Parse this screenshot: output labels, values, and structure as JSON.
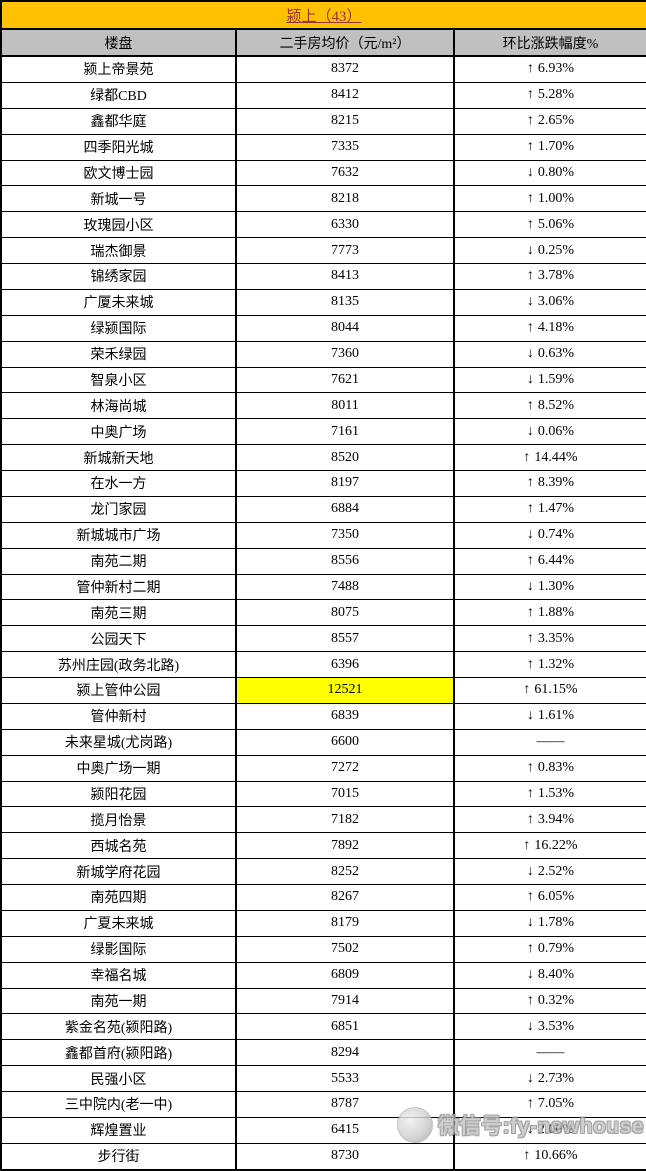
{
  "table": {
    "title": "颍上（43）",
    "columns": [
      "楼盘",
      "二手房均价（元/m²）",
      "环比涨跌幅度%"
    ],
    "rows": [
      {
        "name": "颍上帝景苑",
        "price": "8372",
        "direction": "up",
        "change": "6.93%"
      },
      {
        "name": "绿都CBD",
        "price": "8412",
        "direction": "up",
        "change": "5.28%"
      },
      {
        "name": "鑫都华庭",
        "price": "8215",
        "direction": "up",
        "change": "2.65%"
      },
      {
        "name": "四季阳光城",
        "price": "7335",
        "direction": "up",
        "change": "1.70%"
      },
      {
        "name": "欧文博士园",
        "price": "7632",
        "direction": "down",
        "change": "0.80%"
      },
      {
        "name": "新城一号",
        "price": "8218",
        "direction": "up",
        "change": "1.00%"
      },
      {
        "name": "玫瑰园小区",
        "price": "6330",
        "direction": "up",
        "change": "5.06%"
      },
      {
        "name": "瑞杰御景",
        "price": "7773",
        "direction": "down",
        "change": "0.25%"
      },
      {
        "name": "锦绣家园",
        "price": "8413",
        "direction": "up",
        "change": "3.78%"
      },
      {
        "name": "广厦未来城",
        "price": "8135",
        "direction": "down",
        "change": "3.06%"
      },
      {
        "name": "绿颍国际",
        "price": "8044",
        "direction": "up",
        "change": "4.18%"
      },
      {
        "name": "荣禾绿园",
        "price": "7360",
        "direction": "down",
        "change": "0.63%"
      },
      {
        "name": "智泉小区",
        "price": "7621",
        "direction": "down",
        "change": "1.59%"
      },
      {
        "name": "林海尚城",
        "price": "8011",
        "direction": "up",
        "change": "8.52%"
      },
      {
        "name": "中奥广场",
        "price": "7161",
        "direction": "down",
        "change": "0.06%"
      },
      {
        "name": "新城新天地",
        "price": "8520",
        "direction": "up",
        "change": "14.44%"
      },
      {
        "name": "在水一方",
        "price": "8197",
        "direction": "up",
        "change": "8.39%"
      },
      {
        "name": "龙门家园",
        "price": "6884",
        "direction": "up",
        "change": "1.47%"
      },
      {
        "name": "新城城市广场",
        "price": "7350",
        "direction": "down",
        "change": "0.74%"
      },
      {
        "name": "南苑二期",
        "price": "8556",
        "direction": "up",
        "change": "6.44%"
      },
      {
        "name": "管仲新村二期",
        "price": "7488",
        "direction": "down",
        "change": "1.30%"
      },
      {
        "name": "南苑三期",
        "price": "8075",
        "direction": "up",
        "change": "1.88%"
      },
      {
        "name": "公园天下",
        "price": "8557",
        "direction": "up",
        "change": "3.35%"
      },
      {
        "name": "苏州庄园(政务北路)",
        "price": "6396",
        "direction": "up",
        "change": "1.32%"
      },
      {
        "name": "颍上管仲公园",
        "price": "12521",
        "direction": "up",
        "change": "61.15%",
        "highlight": true
      },
      {
        "name": "管仲新村",
        "price": "6839",
        "direction": "down",
        "change": "1.61%"
      },
      {
        "name": "未来星城(尤岗路)",
        "price": "6600",
        "direction": "none",
        "change": "——"
      },
      {
        "name": "中奥广场一期",
        "price": "7272",
        "direction": "up",
        "change": "0.83%"
      },
      {
        "name": "颍阳花园",
        "price": "7015",
        "direction": "up",
        "change": "1.53%"
      },
      {
        "name": "揽月怡景",
        "price": "7182",
        "direction": "up",
        "change": "3.94%"
      },
      {
        "name": "西城名苑",
        "price": "7892",
        "direction": "up",
        "change": "16.22%"
      },
      {
        "name": "新城学府花园",
        "price": "8252",
        "direction": "down",
        "change": "2.52%"
      },
      {
        "name": "南苑四期",
        "price": "8267",
        "direction": "up",
        "change": "6.05%"
      },
      {
        "name": "广夏未来城",
        "price": "8179",
        "direction": "down",
        "change": "1.78%"
      },
      {
        "name": "绿影国际",
        "price": "7502",
        "direction": "up",
        "change": "0.79%"
      },
      {
        "name": "幸福名城",
        "price": "6809",
        "direction": "down",
        "change": "8.40%"
      },
      {
        "name": "南苑一期",
        "price": "7914",
        "direction": "up",
        "change": "0.32%"
      },
      {
        "name": "紫金名苑(颍阳路)",
        "price": "6851",
        "direction": "down",
        "change": "3.53%"
      },
      {
        "name": "鑫都首府(颍阳路)",
        "price": "8294",
        "direction": "none",
        "change": "——"
      },
      {
        "name": "民强小区",
        "price": "5533",
        "direction": "down",
        "change": "2.73%"
      },
      {
        "name": "三中院内(老一中)",
        "price": "8787",
        "direction": "up",
        "change": "7.05%"
      },
      {
        "name": "辉煌置业",
        "price": "6415",
        "direction": "down",
        "change": "2.00%"
      },
      {
        "name": "步行街",
        "price": "8730",
        "direction": "up",
        "change": "10.66%"
      }
    ]
  },
  "icons": {
    "up": "↑",
    "down": "↓"
  },
  "colors": {
    "title_bg": "#FFC000",
    "title_text": "#963634",
    "header_bg": "#C0C0C0",
    "highlight_bg": "#FFFF00",
    "border": "#000000"
  },
  "watermark": {
    "text": "微信号:fy-newhouse",
    "icon": "wechat-mascot-icon"
  }
}
